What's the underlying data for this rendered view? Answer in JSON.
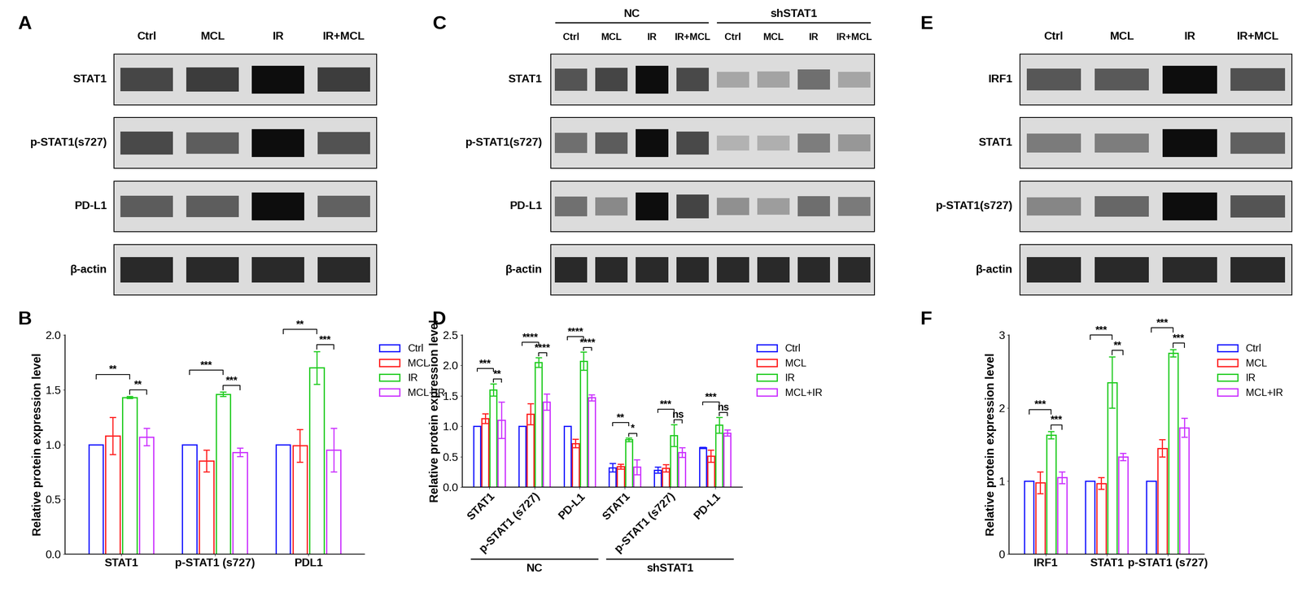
{
  "blots": [
    {
      "panel": "A",
      "lanes": [
        "Ctrl",
        "MCL",
        "IR",
        "IR+MCL"
      ],
      "rows": [
        "STAT1",
        "p-STAT1(s727)",
        "PD-L1",
        "β-actin"
      ]
    },
    {
      "panel": "C",
      "groups": [
        "NC",
        "shSTAT1"
      ],
      "lanes": [
        "Ctrl",
        "MCL",
        "IR",
        "IR+MCL",
        "Ctrl",
        "MCL",
        "IR",
        "IR+MCL"
      ],
      "rows": [
        "STAT1",
        "p-STAT1(s727)",
        "PD-L1",
        "β-actin"
      ]
    },
    {
      "panel": "E",
      "lanes": [
        "Ctrl",
        "MCL",
        "IR",
        "IR+MCL"
      ],
      "rows": [
        "IRF1",
        "STAT1",
        "p-STAT1(s727)",
        "β-actin"
      ]
    }
  ],
  "chart_data": [
    {
      "panel": "B",
      "type": "bar",
      "categories": [
        "STAT1",
        "p-STAT1 (s727)",
        "PDL1"
      ],
      "y_label": "Relative protein expression level",
      "ylim": [
        0,
        2.0
      ],
      "yticks": [
        {
          "value": 0,
          "label": "0.0"
        },
        {
          "value": 0.5,
          "label": "0.5"
        },
        {
          "value": 1.0,
          "label": "1.0"
        },
        {
          "value": 1.5,
          "label": "1.5"
        },
        {
          "value": 2.0,
          "label": "2.0"
        }
      ],
      "legend": "right",
      "series": [
        {
          "name": "Ctrl",
          "color": "#1a1aff",
          "values": [
            1.0,
            1.0,
            1.0
          ],
          "errors": [
            0,
            0,
            0
          ]
        },
        {
          "name": "MCL",
          "color": "#ff2020",
          "values": [
            1.08,
            0.85,
            0.99
          ],
          "errors": [
            0.17,
            0.1,
            0.15
          ]
        },
        {
          "name": "IR",
          "color": "#22cc22",
          "values": [
            1.43,
            1.46,
            1.7
          ],
          "errors": [
            0.01,
            0.02,
            0.15
          ]
        },
        {
          "name": "MCL+IR",
          "color": "#cc33ff",
          "values": [
            1.07,
            0.93,
            0.95
          ],
          "errors": [
            0.08,
            0.04,
            0.2
          ]
        }
      ],
      "significance": [
        [
          {
            "pair": [
              "IR",
              "MCL+IR"
            ],
            "label": "**"
          },
          {
            "pair": [
              "Ctrl",
              "IR"
            ],
            "label": "**"
          }
        ],
        [
          {
            "pair": [
              "IR",
              "MCL+IR"
            ],
            "label": "***"
          },
          {
            "pair": [
              "Ctrl",
              "IR"
            ],
            "label": "***"
          }
        ],
        [
          {
            "pair": [
              "IR",
              "MCL+IR"
            ],
            "label": "***"
          },
          {
            "pair": [
              "Ctrl",
              "IR"
            ],
            "label": "**"
          }
        ]
      ]
    },
    {
      "panel": "D",
      "type": "bar",
      "categories": [
        "STAT1",
        "p-STAT1 (s727)",
        "PD-L1",
        "STAT1",
        "p-STAT1 (s727)",
        "PD-L1"
      ],
      "group_labels": [
        "NC",
        "shSTAT1"
      ],
      "y_label": "Relative protein expression level",
      "ylim": [
        0,
        2.5
      ],
      "yticks": [
        {
          "value": 0,
          "label": "0.0"
        },
        {
          "value": 0.5,
          "label": "0.5"
        },
        {
          "value": 1.0,
          "label": "1.0"
        },
        {
          "value": 1.5,
          "label": "1.5"
        },
        {
          "value": 2.0,
          "label": "2.0"
        },
        {
          "value": 2.5,
          "label": "2.5"
        }
      ],
      "legend": "right",
      "series": [
        {
          "name": "Ctrl",
          "color": "#1a1aff",
          "values": [
            1.0,
            1.0,
            1.0,
            0.32,
            0.28,
            0.65
          ],
          "errors": [
            0,
            0,
            0,
            0.07,
            0.05,
            0.01
          ]
        },
        {
          "name": "MCL",
          "color": "#ff2020",
          "values": [
            1.13,
            1.2,
            0.72,
            0.34,
            0.31,
            0.51
          ],
          "errors": [
            0.08,
            0.17,
            0.07,
            0.04,
            0.06,
            0.1
          ]
        },
        {
          "name": "IR",
          "color": "#22cc22",
          "values": [
            1.6,
            2.05,
            2.07,
            0.78,
            0.85,
            1.02
          ],
          "errors": [
            0.1,
            0.08,
            0.15,
            0.03,
            0.18,
            0.13
          ]
        },
        {
          "name": "MCL+IR",
          "color": "#cc33ff",
          "values": [
            1.1,
            1.4,
            1.47,
            0.33,
            0.57,
            0.89
          ],
          "errors": [
            0.3,
            0.13,
            0.05,
            0.12,
            0.08,
            0.05
          ]
        }
      ],
      "significance": [
        [
          {
            "pair": [
              "IR",
              "MCL+IR"
            ],
            "label": "**"
          },
          {
            "pair": [
              "Ctrl",
              "IR"
            ],
            "label": "***"
          }
        ],
        [
          {
            "pair": [
              "IR",
              "MCL+IR"
            ],
            "label": "****"
          },
          {
            "pair": [
              "Ctrl",
              "IR"
            ],
            "label": "****"
          }
        ],
        [
          {
            "pair": [
              "IR",
              "MCL+IR"
            ],
            "label": "****"
          },
          {
            "pair": [
              "Ctrl",
              "IR"
            ],
            "label": "****"
          }
        ],
        [
          {
            "pair": [
              "IR",
              "MCL+IR"
            ],
            "label": "*"
          },
          {
            "pair": [
              "Ctrl",
              "IR"
            ],
            "label": "**"
          }
        ],
        [
          {
            "pair": [
              "IR",
              "MCL+IR"
            ],
            "label": "ns"
          },
          {
            "pair": [
              "Ctrl",
              "IR"
            ],
            "label": "***"
          }
        ],
        [
          {
            "pair": [
              "IR",
              "MCL+IR"
            ],
            "label": "ns"
          },
          {
            "pair": [
              "Ctrl",
              "IR"
            ],
            "label": "***"
          }
        ]
      ]
    },
    {
      "panel": "F",
      "type": "bar",
      "categories": [
        "IRF1",
        "STAT1",
        "p-STAT1 (s727)"
      ],
      "y_label": "Relative protein expression level",
      "ylim": [
        0,
        3
      ],
      "yticks": [
        0,
        1,
        2,
        3
      ],
      "legend": "right",
      "series": [
        {
          "name": "Ctrl",
          "color": "#1a1aff",
          "values": [
            1,
            1,
            1
          ],
          "errors": [
            0,
            0,
            0
          ]
        },
        {
          "name": "MCL",
          "color": "#ff2020",
          "values": [
            0.98,
            0.97,
            1.45
          ],
          "errors": [
            0.15,
            0.08,
            0.12
          ]
        },
        {
          "name": "IR",
          "color": "#22cc22",
          "values": [
            1.63,
            2.35,
            2.75
          ],
          "errors": [
            0.05,
            0.35,
            0.05
          ]
        },
        {
          "name": "MCL+IR",
          "color": "#cc33ff",
          "values": [
            1.05,
            1.33,
            1.73
          ],
          "errors": [
            0.08,
            0.05,
            0.13
          ]
        }
      ],
      "significance": [
        [
          {
            "pair": [
              "IR",
              "MCL+IR"
            ],
            "label": "***"
          },
          {
            "pair": [
              "Ctrl",
              "IR"
            ],
            "label": "***"
          }
        ],
        [
          {
            "pair": [
              "IR",
              "MCL+IR"
            ],
            "label": "**"
          },
          {
            "pair": [
              "Ctrl",
              "IR"
            ],
            "label": "***"
          }
        ],
        [
          {
            "pair": [
              "IR",
              "MCL+IR"
            ],
            "label": "***"
          },
          {
            "pair": [
              "Ctrl",
              "IR"
            ],
            "label": "***"
          }
        ]
      ]
    }
  ]
}
